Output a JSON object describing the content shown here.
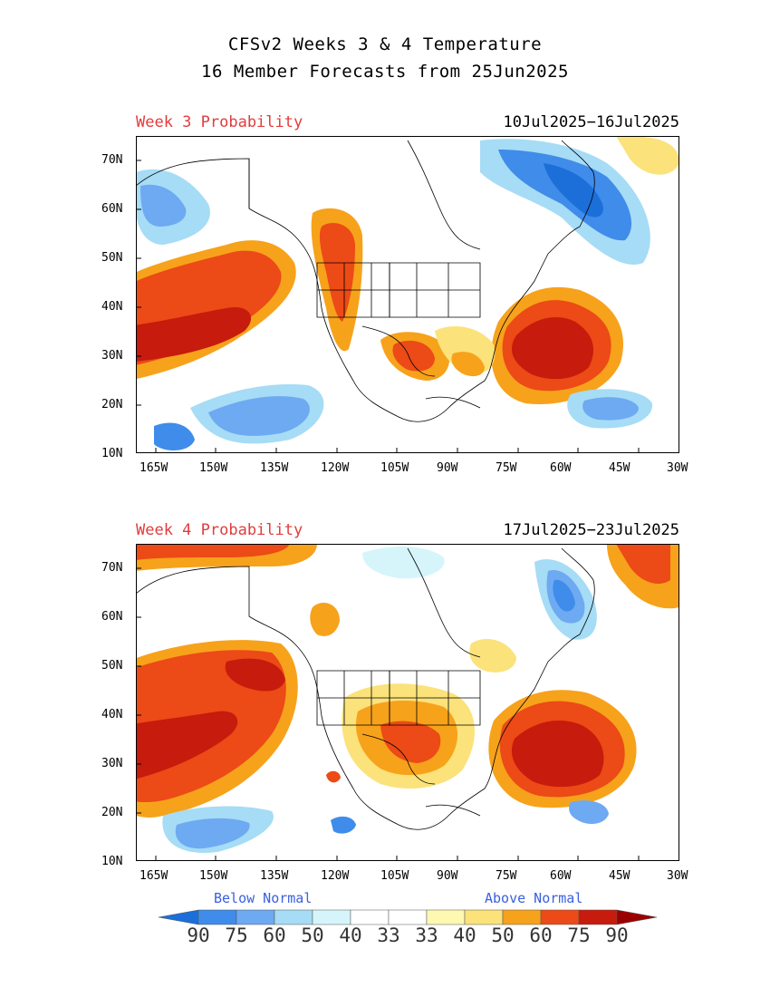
{
  "title_line1": "CFSv2 Weeks 3 & 4 Temperature",
  "title_line2": "16 Member Forecasts from 25Jun2025",
  "panels": [
    {
      "label": "Week 3 Probability",
      "dates": "10Jul2025−16Jul2025"
    },
    {
      "label": "Week 4 Probability",
      "dates": "17Jul2025−23Jul2025"
    }
  ],
  "lat_ticks": [
    "70N",
    "60N",
    "50N",
    "40N",
    "30N",
    "20N",
    "10N"
  ],
  "lon_ticks": [
    "165W",
    "150W",
    "135W",
    "120W",
    "105W",
    "90W",
    "75W",
    "60W",
    "45W",
    "30W"
  ],
  "legend": {
    "below_label": "Below Normal",
    "above_label": "Above Normal",
    "values": [
      "90",
      "75",
      "60",
      "50",
      "40",
      "33",
      "33",
      "40",
      "50",
      "60",
      "75",
      "90"
    ],
    "colors": [
      "#1c6fd8",
      "#3f8cea",
      "#6daaf2",
      "#a6dcf5",
      "#d6f5fb",
      "#ffffff",
      "#ffffff",
      "#fff8b0",
      "#fbe27a",
      "#f7a21b",
      "#ec4a16",
      "#c61b0d",
      "#9b0000"
    ]
  },
  "colors": {
    "title_red": "#e23c3c",
    "label_blue": "#3a5fe0"
  }
}
